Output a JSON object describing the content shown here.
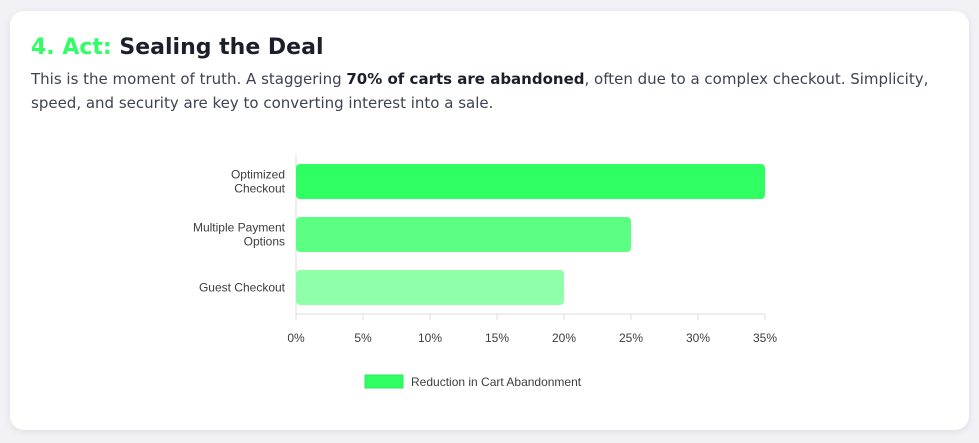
{
  "section": {
    "step": "4. Act:",
    "title": "Sealing the Deal",
    "desc_before": "This is the moment of truth. A staggering ",
    "desc_bold": "70% of carts are abandoned",
    "desc_after": ", often due to a complex checkout. Simplicity, speed, and security are key to converting interest into a sale."
  },
  "colors": {
    "accent": "#2fff63",
    "bars": [
      "#2fff63",
      "#5bff82",
      "#8fffaa"
    ]
  },
  "chart_data": {
    "type": "bar",
    "orientation": "horizontal",
    "categories": [
      [
        "Optimized",
        "Checkout"
      ],
      [
        "Multiple Payment",
        "Options"
      ],
      [
        "Guest Checkout"
      ]
    ],
    "series": [
      {
        "name": "Reduction in Cart Abandonment",
        "values": [
          35,
          25,
          20
        ]
      }
    ],
    "xlim": [
      0,
      35
    ],
    "xticks": [
      "0%",
      "5%",
      "10%",
      "15%",
      "20%",
      "25%",
      "30%",
      "35%"
    ],
    "grid": false,
    "legend_position": "bottom"
  }
}
